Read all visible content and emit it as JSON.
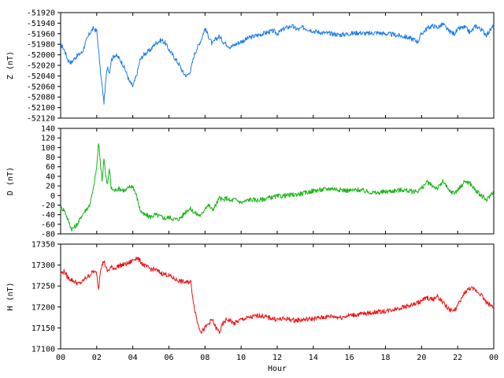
{
  "chart_data": [
    {
      "type": "line",
      "ylabel": "Z (nT)",
      "ylim": [
        -52120,
        -51920
      ],
      "yticks": [
        -51920,
        -51940,
        -51960,
        -51980,
        -52000,
        -52020,
        -52040,
        -52060,
        -52080,
        -52100,
        -52120
      ],
      "xlim": [
        0,
        24
      ],
      "color": "#1e7ee8",
      "series": [
        {
          "x": [
            0,
            0.2,
            0.4,
            0.6,
            0.8,
            1.0,
            1.2,
            1.4,
            1.6,
            1.8,
            2.0,
            2.1,
            2.2,
            2.3,
            2.4,
            2.5,
            2.6,
            2.7,
            2.8,
            3.0,
            3.2,
            3.4,
            3.6,
            3.8,
            4.0,
            4.2,
            4.4,
            4.6,
            4.8,
            5.0,
            5.2,
            5.4,
            5.6,
            5.8,
            6.0,
            6.2,
            6.4,
            6.6,
            6.8,
            7.0,
            7.2,
            7.4,
            7.6,
            7.8,
            8.0,
            8.2,
            8.4,
            8.6,
            8.8,
            9.0,
            9.2,
            9.4,
            9.6,
            9.8,
            10.0,
            10.2,
            10.4,
            10.6,
            10.8,
            11.0,
            11.2,
            11.4,
            11.6,
            11.8,
            12.0,
            12.2,
            12.4,
            12.6,
            12.8,
            13.0,
            13.2,
            13.4,
            13.6,
            13.8,
            14.0,
            14.5,
            15.0,
            15.5,
            16.0,
            16.5,
            17.0,
            17.5,
            18.0,
            18.5,
            19.0,
            19.5,
            19.8,
            20.0,
            20.3,
            20.6,
            20.9,
            21.2,
            21.5,
            21.8,
            22.1,
            22.4,
            22.7,
            23.0,
            23.3,
            23.6,
            24.0
          ],
          "values": [
            -51980,
            -51990,
            -52010,
            -52015,
            -52005,
            -52000,
            -51995,
            -51975,
            -51960,
            -51950,
            -51955,
            -51990,
            -52030,
            -52060,
            -52090,
            -52050,
            -52020,
            -52035,
            -52010,
            -52000,
            -52005,
            -52015,
            -52030,
            -52050,
            -52060,
            -52040,
            -52010,
            -52000,
            -51995,
            -51990,
            -51980,
            -51975,
            -51972,
            -51978,
            -51990,
            -52000,
            -52010,
            -52020,
            -52035,
            -52040,
            -52030,
            -52000,
            -51985,
            -51970,
            -51950,
            -51965,
            -51980,
            -51970,
            -51965,
            -51975,
            -51980,
            -51985,
            -51982,
            -51978,
            -51975,
            -51972,
            -51968,
            -51966,
            -51964,
            -51962,
            -51960,
            -51958,
            -51956,
            -51955,
            -51960,
            -51955,
            -51950,
            -51948,
            -51945,
            -51950,
            -51952,
            -51948,
            -51950,
            -51952,
            -51955,
            -51958,
            -51960,
            -51962,
            -51960,
            -51958,
            -51960,
            -51958,
            -51960,
            -51962,
            -51965,
            -51970,
            -51975,
            -51960,
            -51950,
            -51945,
            -51948,
            -51942,
            -51955,
            -51960,
            -51950,
            -51948,
            -51958,
            -51945,
            -51952,
            -51962,
            -51945
          ]
        }
      ]
    },
    {
      "type": "line",
      "ylabel": "D (nT)",
      "ylim": [
        -80,
        140
      ],
      "yticks": [
        140,
        120,
        100,
        80,
        60,
        40,
        20,
        0,
        -20,
        -40,
        -60,
        -80
      ],
      "xlim": [
        0,
        24
      ],
      "color": "#16b516",
      "series": [
        {
          "x": [
            0,
            0.2,
            0.4,
            0.6,
            0.8,
            1.0,
            1.2,
            1.4,
            1.6,
            1.8,
            2.0,
            2.1,
            2.2,
            2.3,
            2.4,
            2.5,
            2.6,
            2.7,
            2.8,
            3.0,
            3.2,
            3.4,
            3.6,
            3.8,
            4.0,
            4.2,
            4.4,
            4.6,
            4.8,
            5.0,
            5.2,
            5.4,
            5.6,
            5.8,
            6.0,
            6.2,
            6.4,
            6.6,
            6.8,
            7.0,
            7.2,
            7.4,
            7.6,
            7.8,
            8.0,
            8.2,
            8.4,
            8.6,
            8.8,
            9.0,
            9.2,
            9.4,
            9.6,
            9.8,
            10.0,
            10.5,
            11.0,
            11.5,
            12.0,
            12.5,
            13.0,
            13.5,
            14.0,
            14.5,
            15.0,
            15.5,
            16.0,
            16.5,
            17.0,
            17.5,
            18.0,
            18.5,
            19.0,
            19.5,
            19.8,
            20.0,
            20.3,
            20.6,
            20.9,
            21.2,
            21.5,
            21.8,
            22.1,
            22.4,
            22.7,
            23.0,
            23.3,
            23.6,
            24.0
          ],
          "values": [
            -25,
            -30,
            -50,
            -70,
            -65,
            -55,
            -40,
            -30,
            -20,
            10,
            60,
            110,
            70,
            30,
            80,
            40,
            20,
            60,
            15,
            10,
            15,
            12,
            10,
            18,
            20,
            0,
            -30,
            -40,
            -42,
            -45,
            -40,
            -42,
            -45,
            -48,
            -45,
            -48,
            -50,
            -48,
            -40,
            -30,
            -28,
            -35,
            -40,
            -42,
            -25,
            -20,
            -30,
            -20,
            -5,
            -10,
            -5,
            -12,
            -8,
            -10,
            -15,
            -8,
            -10,
            -5,
            -2,
            0,
            2,
            5,
            10,
            12,
            15,
            12,
            10,
            12,
            8,
            5,
            8,
            10,
            12,
            8,
            10,
            15,
            28,
            20,
            15,
            30,
            10,
            5,
            15,
            30,
            25,
            10,
            0,
            -10,
            10
          ]
        }
      ]
    },
    {
      "type": "line",
      "ylabel": "H (nT)",
      "xlabel": "Hour",
      "ylim": [
        17100,
        17350
      ],
      "yticks": [
        17350,
        17300,
        17250,
        17200,
        17150,
        17100
      ],
      "xlim": [
        0,
        24
      ],
      "xticks": [
        "00",
        "02",
        "04",
        "06",
        "08",
        "10",
        "12",
        "14",
        "16",
        "18",
        "20",
        "22",
        "00"
      ],
      "color": "#ee1111",
      "series": [
        {
          "x": [
            0,
            0.2,
            0.4,
            0.6,
            0.8,
            1.0,
            1.2,
            1.4,
            1.6,
            1.8,
            2.0,
            2.1,
            2.2,
            2.3,
            2.4,
            2.5,
            2.6,
            2.7,
            2.8,
            3.0,
            3.2,
            3.4,
            3.6,
            3.8,
            4.0,
            4.2,
            4.4,
            4.6,
            4.8,
            5.0,
            5.2,
            5.4,
            5.6,
            5.8,
            6.0,
            6.2,
            6.4,
            6.6,
            6.8,
            7.0,
            7.2,
            7.4,
            7.6,
            7.8,
            8.0,
            8.2,
            8.4,
            8.6,
            8.8,
            9.0,
            9.2,
            9.4,
            9.6,
            9.8,
            10.0,
            10.5,
            11.0,
            11.5,
            12.0,
            12.5,
            13.0,
            13.5,
            14.0,
            14.5,
            15.0,
            15.5,
            16.0,
            16.5,
            17.0,
            17.5,
            18.0,
            18.5,
            19.0,
            19.5,
            19.8,
            20.0,
            20.3,
            20.6,
            20.9,
            21.2,
            21.5,
            21.8,
            22.1,
            22.4,
            22.7,
            23.0,
            23.3,
            23.6,
            24.0
          ],
          "values": [
            17280,
            17285,
            17270,
            17265,
            17260,
            17255,
            17260,
            17270,
            17275,
            17285,
            17280,
            17240,
            17290,
            17300,
            17310,
            17295,
            17285,
            17290,
            17295,
            17292,
            17298,
            17300,
            17302,
            17305,
            17312,
            17318,
            17310,
            17300,
            17295,
            17290,
            17290,
            17285,
            17280,
            17278,
            17275,
            17270,
            17265,
            17262,
            17260,
            17258,
            17262,
            17200,
            17160,
            17140,
            17150,
            17160,
            17170,
            17150,
            17140,
            17160,
            17170,
            17168,
            17160,
            17165,
            17170,
            17175,
            17180,
            17175,
            17170,
            17172,
            17168,
            17170,
            17172,
            17175,
            17178,
            17175,
            17180,
            17182,
            17185,
            17188,
            17190,
            17195,
            17200,
            17205,
            17210,
            17215,
            17222,
            17218,
            17225,
            17210,
            17195,
            17190,
            17210,
            17235,
            17245,
            17240,
            17230,
            17210,
            17200
          ]
        }
      ]
    }
  ]
}
